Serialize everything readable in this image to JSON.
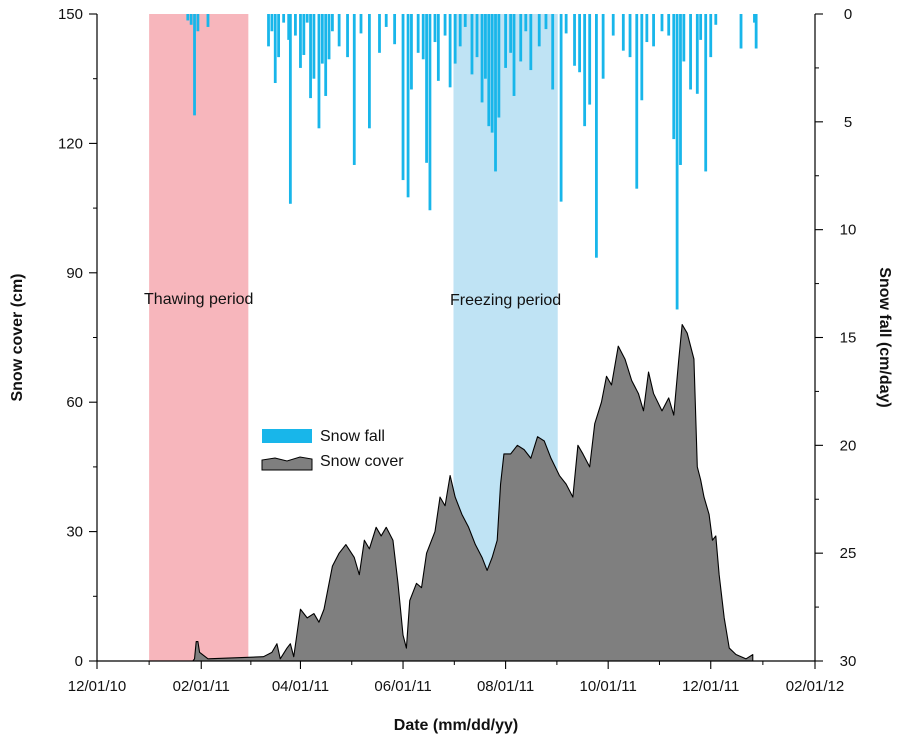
{
  "chart_data": {
    "type": "bar",
    "xlabel": "Date (mm/dd/yy)",
    "ylabel_left": "Snow cover (cm)",
    "ylabel_right": "Snow fall (cm/day)",
    "x_range": [
      "2010-12-01",
      "2012-02-01"
    ],
    "x_ticks": [
      "12/01/10",
      "02/01/11",
      "04/01/11",
      "06/01/11",
      "08/01/11",
      "10/01/11",
      "12/01/11",
      "02/01/12"
    ],
    "x_tick_dates": [
      "2010-12-01",
      "2011-02-01",
      "2011-04-01",
      "2011-06-01",
      "2011-08-01",
      "2011-10-01",
      "2011-12-01",
      "2012-02-01"
    ],
    "y_left_range": [
      0,
      150
    ],
    "y_left_ticks": [
      "0",
      "30",
      "60",
      "90",
      "120",
      "150"
    ],
    "y_right_range": [
      0,
      30
    ],
    "y_right_inverted": true,
    "y_right_ticks": [
      "0",
      "5",
      "10",
      "15",
      "20",
      "25",
      "30"
    ],
    "grid": false,
    "periods": [
      {
        "label": "Thawing period",
        "start": "2011-01-01",
        "end": "2011-03-01",
        "color": "#f7b6bc"
      },
      {
        "label": "Freezing period",
        "start": "2011-07-01",
        "end": "2011-09-01",
        "color": "#bfe3f4"
      }
    ],
    "legend": {
      "placement": "center-left",
      "entries": [
        "Snow fall",
        "Snow cover"
      ]
    },
    "series": [
      {
        "name": "Snow cover",
        "type": "area",
        "color": "#7f7f7f",
        "points": [
          [
            "2011-01-27",
            0
          ],
          [
            "2011-01-28",
            0.5
          ],
          [
            "2011-01-29",
            4.5
          ],
          [
            "2011-01-30",
            4.5
          ],
          [
            "2011-01-31",
            2
          ],
          [
            "2011-02-05",
            0.5
          ],
          [
            "2011-03-10",
            1
          ],
          [
            "2011-03-15",
            2
          ],
          [
            "2011-03-18",
            4
          ],
          [
            "2011-03-20",
            0.5
          ],
          [
            "2011-03-24",
            3
          ],
          [
            "2011-03-26",
            4
          ],
          [
            "2011-03-28",
            1
          ],
          [
            "2011-04-01",
            12
          ],
          [
            "2011-04-05",
            10
          ],
          [
            "2011-04-09",
            11
          ],
          [
            "2011-04-12",
            9
          ],
          [
            "2011-04-15",
            12
          ],
          [
            "2011-04-20",
            22
          ],
          [
            "2011-04-24",
            25
          ],
          [
            "2011-04-28",
            27
          ],
          [
            "2011-05-03",
            24
          ],
          [
            "2011-05-06",
            20
          ],
          [
            "2011-05-09",
            28
          ],
          [
            "2011-05-12",
            26
          ],
          [
            "2011-05-16",
            31
          ],
          [
            "2011-05-19",
            29
          ],
          [
            "2011-05-22",
            31
          ],
          [
            "2011-05-26",
            28
          ],
          [
            "2011-05-29",
            18
          ],
          [
            "2011-06-01",
            6
          ],
          [
            "2011-06-03",
            3
          ],
          [
            "2011-06-05",
            14
          ],
          [
            "2011-06-09",
            18
          ],
          [
            "2011-06-12",
            17
          ],
          [
            "2011-06-15",
            25
          ],
          [
            "2011-06-20",
            30
          ],
          [
            "2011-06-23",
            38
          ],
          [
            "2011-06-26",
            36
          ],
          [
            "2011-06-29",
            43
          ],
          [
            "2011-07-02",
            38
          ],
          [
            "2011-07-06",
            34
          ],
          [
            "2011-07-10",
            31
          ],
          [
            "2011-07-14",
            27
          ],
          [
            "2011-07-18",
            24
          ],
          [
            "2011-07-21",
            21
          ],
          [
            "2011-07-24",
            24
          ],
          [
            "2011-07-27",
            28
          ],
          [
            "2011-07-29",
            41
          ],
          [
            "2011-07-31",
            48
          ],
          [
            "2011-08-04",
            48
          ],
          [
            "2011-08-08",
            50
          ],
          [
            "2011-08-12",
            49
          ],
          [
            "2011-08-16",
            47
          ],
          [
            "2011-08-20",
            52
          ],
          [
            "2011-08-24",
            51
          ],
          [
            "2011-08-28",
            47
          ],
          [
            "2011-09-02",
            43
          ],
          [
            "2011-09-06",
            41
          ],
          [
            "2011-09-10",
            38
          ],
          [
            "2011-09-13",
            50
          ],
          [
            "2011-09-16",
            48
          ],
          [
            "2011-09-20",
            45
          ],
          [
            "2011-09-23",
            55
          ],
          [
            "2011-09-27",
            60
          ],
          [
            "2011-09-30",
            66
          ],
          [
            "2011-10-03",
            64
          ],
          [
            "2011-10-07",
            73
          ],
          [
            "2011-10-11",
            70
          ],
          [
            "2011-10-15",
            65
          ],
          [
            "2011-10-19",
            62
          ],
          [
            "2011-10-22",
            58
          ],
          [
            "2011-10-25",
            67
          ],
          [
            "2011-10-28",
            62
          ],
          [
            "2011-11-02",
            58
          ],
          [
            "2011-11-06",
            61
          ],
          [
            "2011-11-09",
            57
          ],
          [
            "2011-11-12",
            70
          ],
          [
            "2011-11-14",
            78
          ],
          [
            "2011-11-17",
            76
          ],
          [
            "2011-11-21",
            70
          ],
          [
            "2011-11-23",
            45
          ],
          [
            "2011-11-25",
            42
          ],
          [
            "2011-11-27",
            38
          ],
          [
            "2011-11-30",
            34
          ],
          [
            "2011-12-02",
            28
          ],
          [
            "2011-12-04",
            29
          ],
          [
            "2011-12-06",
            20
          ],
          [
            "2011-12-09",
            10
          ],
          [
            "2011-12-12",
            3
          ],
          [
            "2011-12-16",
            1.5
          ],
          [
            "2011-12-22",
            0.5
          ],
          [
            "2011-12-26",
            1.5
          ],
          [
            "2011-12-26",
            0
          ]
        ]
      },
      {
        "name": "Snow fall",
        "type": "bar",
        "axis": "right",
        "color": "#18b6ea",
        "points": [
          [
            "2011-01-24",
            0.3
          ],
          [
            "2011-01-26",
            0.5
          ],
          [
            "2011-01-28",
            4.7
          ],
          [
            "2011-01-30",
            0.8
          ],
          [
            "2011-02-05",
            0.6
          ],
          [
            "2011-03-13",
            1.5
          ],
          [
            "2011-03-15",
            0.8
          ],
          [
            "2011-03-17",
            3.2
          ],
          [
            "2011-03-19",
            2.0
          ],
          [
            "2011-03-22",
            0.4
          ],
          [
            "2011-03-25",
            1.2
          ],
          [
            "2011-03-26",
            8.8
          ],
          [
            "2011-03-29",
            1.0
          ],
          [
            "2011-04-01",
            2.5
          ],
          [
            "2011-04-03",
            1.9
          ],
          [
            "2011-04-05",
            0.4
          ],
          [
            "2011-04-07",
            3.9
          ],
          [
            "2011-04-09",
            3.0
          ],
          [
            "2011-04-12",
            5.3
          ],
          [
            "2011-04-14",
            2.3
          ],
          [
            "2011-04-16",
            3.8
          ],
          [
            "2011-04-18",
            2.1
          ],
          [
            "2011-04-20",
            0.8
          ],
          [
            "2011-04-24",
            1.5
          ],
          [
            "2011-04-29",
            2.0
          ],
          [
            "2011-05-03",
            7.0
          ],
          [
            "2011-05-07",
            0.9
          ],
          [
            "2011-05-12",
            5.3
          ],
          [
            "2011-05-18",
            1.8
          ],
          [
            "2011-05-22",
            0.6
          ],
          [
            "2011-05-27",
            1.4
          ],
          [
            "2011-06-01",
            7.7
          ],
          [
            "2011-06-04",
            8.5
          ],
          [
            "2011-06-06",
            3.5
          ],
          [
            "2011-06-10",
            1.8
          ],
          [
            "2011-06-13",
            2.1
          ],
          [
            "2011-06-15",
            6.9
          ],
          [
            "2011-06-17",
            9.1
          ],
          [
            "2011-06-20",
            1.3
          ],
          [
            "2011-06-22",
            3.1
          ],
          [
            "2011-06-26",
            1.0
          ],
          [
            "2011-06-29",
            3.4
          ],
          [
            "2011-07-02",
            2.3
          ],
          [
            "2011-07-05",
            1.5
          ],
          [
            "2011-07-08",
            0.6
          ],
          [
            "2011-07-12",
            2.8
          ],
          [
            "2011-07-15",
            2.0
          ],
          [
            "2011-07-18",
            4.1
          ],
          [
            "2011-07-20",
            3.0
          ],
          [
            "2011-07-22",
            5.2
          ],
          [
            "2011-07-24",
            5.5
          ],
          [
            "2011-07-26",
            7.3
          ],
          [
            "2011-07-28",
            4.8
          ],
          [
            "2011-08-01",
            2.5
          ],
          [
            "2011-08-04",
            1.8
          ],
          [
            "2011-08-06",
            3.8
          ],
          [
            "2011-08-10",
            2.2
          ],
          [
            "2011-08-13",
            0.8
          ],
          [
            "2011-08-16",
            2.6
          ],
          [
            "2011-08-21",
            1.5
          ],
          [
            "2011-08-25",
            0.7
          ],
          [
            "2011-08-29",
            3.5
          ],
          [
            "2011-09-03",
            8.7
          ],
          [
            "2011-09-06",
            0.9
          ],
          [
            "2011-09-11",
            2.4
          ],
          [
            "2011-09-14",
            2.7
          ],
          [
            "2011-09-17",
            5.2
          ],
          [
            "2011-09-20",
            4.2
          ],
          [
            "2011-09-24",
            11.3
          ],
          [
            "2011-09-28",
            3.0
          ],
          [
            "2011-10-04",
            1.0
          ],
          [
            "2011-10-10",
            1.7
          ],
          [
            "2011-10-14",
            2.0
          ],
          [
            "2011-10-18",
            8.1
          ],
          [
            "2011-10-21",
            4.0
          ],
          [
            "2011-10-24",
            1.3
          ],
          [
            "2011-10-28",
            1.5
          ],
          [
            "2011-11-02",
            0.8
          ],
          [
            "2011-11-06",
            1.0
          ],
          [
            "2011-11-09",
            5.8
          ],
          [
            "2011-11-11",
            13.7
          ],
          [
            "2011-11-13",
            7.0
          ],
          [
            "2011-11-15",
            2.2
          ],
          [
            "2011-11-19",
            3.5
          ],
          [
            "2011-11-23",
            3.7
          ],
          [
            "2011-11-25",
            1.2
          ],
          [
            "2011-11-28",
            7.3
          ],
          [
            "2011-12-01",
            2.0
          ],
          [
            "2011-12-04",
            0.5
          ],
          [
            "2011-12-19",
            1.6
          ],
          [
            "2011-12-27",
            0.4
          ],
          [
            "2011-12-28",
            1.6
          ]
        ]
      }
    ]
  }
}
